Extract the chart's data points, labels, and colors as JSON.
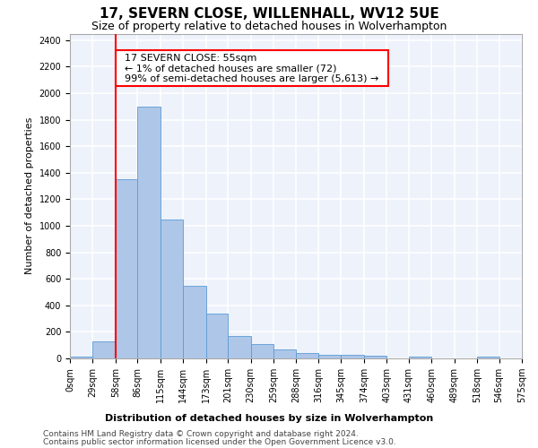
{
  "title": "17, SEVERN CLOSE, WILLENHALL, WV12 5UE",
  "subtitle": "Size of property relative to detached houses in Wolverhampton",
  "xlabel": "Distribution of detached houses by size in Wolverhampton",
  "ylabel": "Number of detached properties",
  "footer_line1": "Contains HM Land Registry data © Crown copyright and database right 2024.",
  "footer_line2": "Contains public sector information licensed under the Open Government Licence v3.0.",
  "annotation_title": "17 SEVERN CLOSE: 55sqm",
  "annotation_line2": "← 1% of detached houses are smaller (72)",
  "annotation_line3": "99% of semi-detached houses are larger (5,613) →",
  "bar_color": "#aec6e8",
  "bar_edge_color": "#5b9bd5",
  "marker_color": "red",
  "marker_x": 58,
  "bin_edges": [
    0,
    29,
    58,
    86,
    115,
    144,
    173,
    201,
    230,
    259,
    288,
    316,
    345,
    374,
    403,
    431,
    460,
    489,
    518,
    546,
    575
  ],
  "bar_heights": [
    15,
    130,
    1350,
    1900,
    1050,
    545,
    340,
    170,
    110,
    65,
    40,
    30,
    28,
    20,
    0,
    12,
    0,
    0,
    15,
    0
  ],
  "ylim": [
    0,
    2450
  ],
  "xlim": [
    0,
    575
  ],
  "ytick_step": 200,
  "bg_color": "#edf2fb",
  "grid_color": "white",
  "title_fontsize": 11,
  "subtitle_fontsize": 9,
  "axis_label_fontsize": 8,
  "ylabel_fontsize": 8,
  "tick_fontsize": 7,
  "annotation_fontsize": 8,
  "footer_fontsize": 6.5
}
